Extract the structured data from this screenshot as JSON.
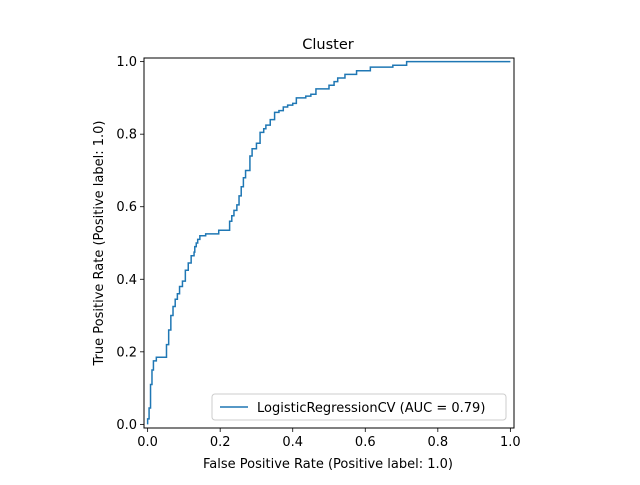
{
  "chart_data": {
    "type": "line",
    "title": "Cluster",
    "xlabel": "False Positive Rate (Positive label: 1.0)",
    "ylabel": "True Positive Rate (Positive label: 1.0)",
    "xlim": [
      -0.01,
      1.01
    ],
    "ylim": [
      -0.01,
      1.01
    ],
    "x_ticks": [
      "0.0",
      "0.2",
      "0.4",
      "0.6",
      "0.8",
      "1.0"
    ],
    "y_ticks": [
      "0.0",
      "0.2",
      "0.4",
      "0.6",
      "0.8",
      "1.0"
    ],
    "grid": false,
    "legend_position": "lower-right",
    "series": [
      {
        "name": "LogisticRegressionCV (AUC = 0.79)",
        "color": "#1f77b4",
        "drawstyle": "steps-post",
        "x": [
          0.0,
          0.0,
          0.004,
          0.004,
          0.008,
          0.008,
          0.012,
          0.012,
          0.016,
          0.016,
          0.024,
          0.024,
          0.052,
          0.052,
          0.058,
          0.058,
          0.064,
          0.064,
          0.07,
          0.07,
          0.076,
          0.076,
          0.082,
          0.082,
          0.088,
          0.088,
          0.096,
          0.096,
          0.104,
          0.104,
          0.112,
          0.112,
          0.12,
          0.12,
          0.128,
          0.128,
          0.13,
          0.13,
          0.134,
          0.134,
          0.138,
          0.138,
          0.144,
          0.144,
          0.16,
          0.16,
          0.196,
          0.196,
          0.226,
          0.226,
          0.232,
          0.232,
          0.238,
          0.238,
          0.246,
          0.246,
          0.252,
          0.252,
          0.258,
          0.258,
          0.264,
          0.264,
          0.27,
          0.27,
          0.282,
          0.282,
          0.288,
          0.288,
          0.3,
          0.3,
          0.31,
          0.31,
          0.32,
          0.32,
          0.326,
          0.326,
          0.338,
          0.338,
          0.35,
          0.35,
          0.362,
          0.362,
          0.374,
          0.374,
          0.386,
          0.386,
          0.4,
          0.4,
          0.41,
          0.41,
          0.436,
          0.436,
          0.45,
          0.45,
          0.464,
          0.464,
          0.5,
          0.5,
          0.514,
          0.514,
          0.524,
          0.524,
          0.544,
          0.544,
          0.576,
          0.576,
          0.614,
          0.614,
          0.676,
          0.676,
          0.714,
          0.714,
          1.0
        ],
        "y": [
          0.0,
          0.015,
          0.015,
          0.045,
          0.045,
          0.11,
          0.11,
          0.15,
          0.15,
          0.175,
          0.175,
          0.185,
          0.185,
          0.22,
          0.22,
          0.26,
          0.26,
          0.3,
          0.3,
          0.325,
          0.325,
          0.345,
          0.345,
          0.36,
          0.36,
          0.38,
          0.38,
          0.395,
          0.395,
          0.425,
          0.425,
          0.445,
          0.445,
          0.465,
          0.465,
          0.475,
          0.475,
          0.49,
          0.49,
          0.5,
          0.5,
          0.51,
          0.51,
          0.52,
          0.52,
          0.525,
          0.525,
          0.535,
          0.535,
          0.56,
          0.56,
          0.575,
          0.575,
          0.59,
          0.59,
          0.605,
          0.605,
          0.63,
          0.63,
          0.655,
          0.655,
          0.68,
          0.68,
          0.7,
          0.7,
          0.74,
          0.74,
          0.76,
          0.76,
          0.775,
          0.775,
          0.805,
          0.805,
          0.815,
          0.815,
          0.825,
          0.825,
          0.84,
          0.84,
          0.86,
          0.86,
          0.865,
          0.865,
          0.875,
          0.875,
          0.88,
          0.88,
          0.885,
          0.885,
          0.9,
          0.9,
          0.905,
          0.905,
          0.91,
          0.91,
          0.925,
          0.925,
          0.935,
          0.935,
          0.945,
          0.945,
          0.955,
          0.955,
          0.965,
          0.965,
          0.975,
          0.975,
          0.985,
          0.985,
          0.99,
          0.99,
          1.0,
          1.0
        ]
      }
    ]
  }
}
